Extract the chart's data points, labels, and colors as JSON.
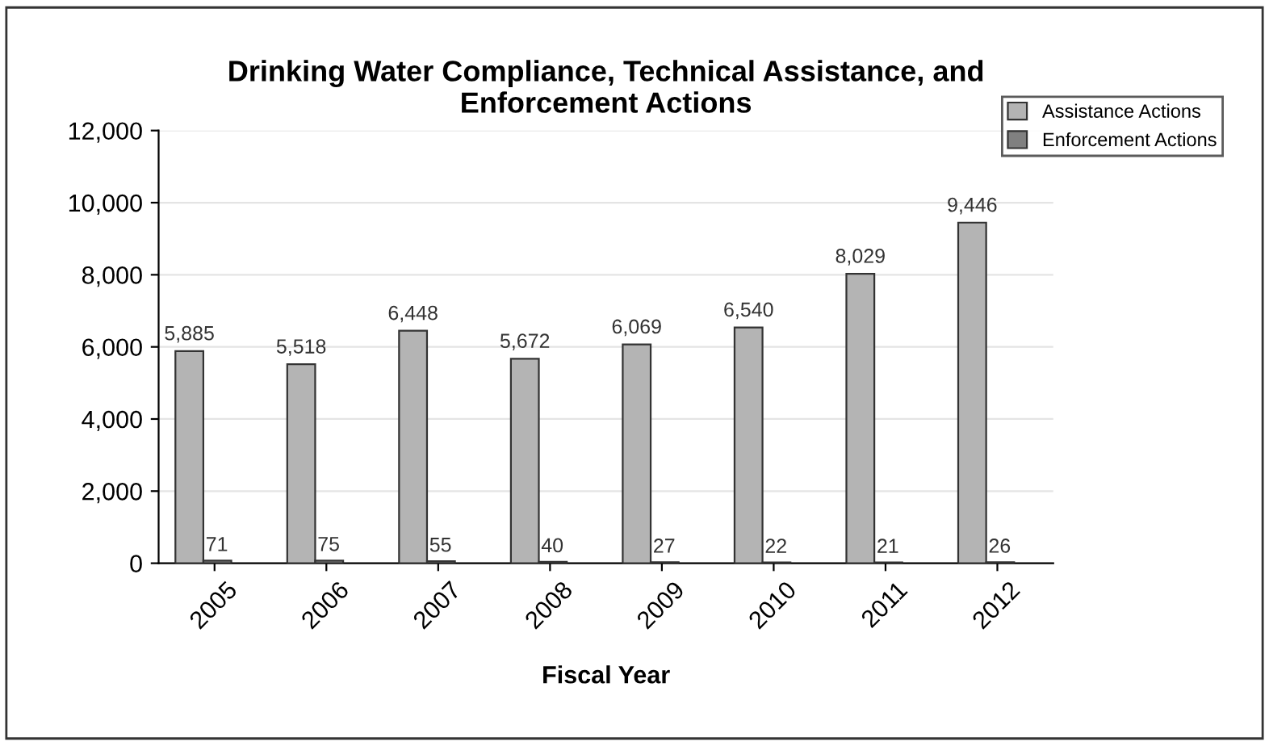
{
  "chart_data": {
    "type": "bar",
    "title": "Drinking Water Compliance, Technical Assistance, and\nEnforcement Actions",
    "xlabel": "Fiscal Year",
    "categories": [
      "2005",
      "2006",
      "2007",
      "2008",
      "2009",
      "2010",
      "2011",
      "2012"
    ],
    "series": [
      {
        "name": "Assistance Actions",
        "color": "#b4b4b4",
        "values": [
          5885,
          5518,
          6448,
          5672,
          6069,
          6540,
          8029,
          9446
        ],
        "value_labels": [
          "5,885",
          "5,518",
          "6,448",
          "5,672",
          "6,069",
          "6,540",
          "8,029",
          "9,446"
        ]
      },
      {
        "name": "Enforcement Actions",
        "color": "#808080",
        "values": [
          71,
          75,
          55,
          40,
          27,
          22,
          21,
          26
        ],
        "value_labels": [
          "71",
          "75",
          "55",
          "40",
          "27",
          "22",
          "21",
          "26"
        ]
      }
    ],
    "ylim": [
      0,
      12000
    ],
    "yticks": [
      {
        "value": 0,
        "label": "0"
      },
      {
        "value": 2000,
        "label": "2,000"
      },
      {
        "value": 4000,
        "label": "4,000"
      },
      {
        "value": 6000,
        "label": "6,000"
      },
      {
        "value": 8000,
        "label": "8,000"
      },
      {
        "value": 10000,
        "label": "10,000"
      },
      {
        "value": 12000,
        "label": "12,000"
      }
    ],
    "grid": "y",
    "legend": "top right"
  }
}
